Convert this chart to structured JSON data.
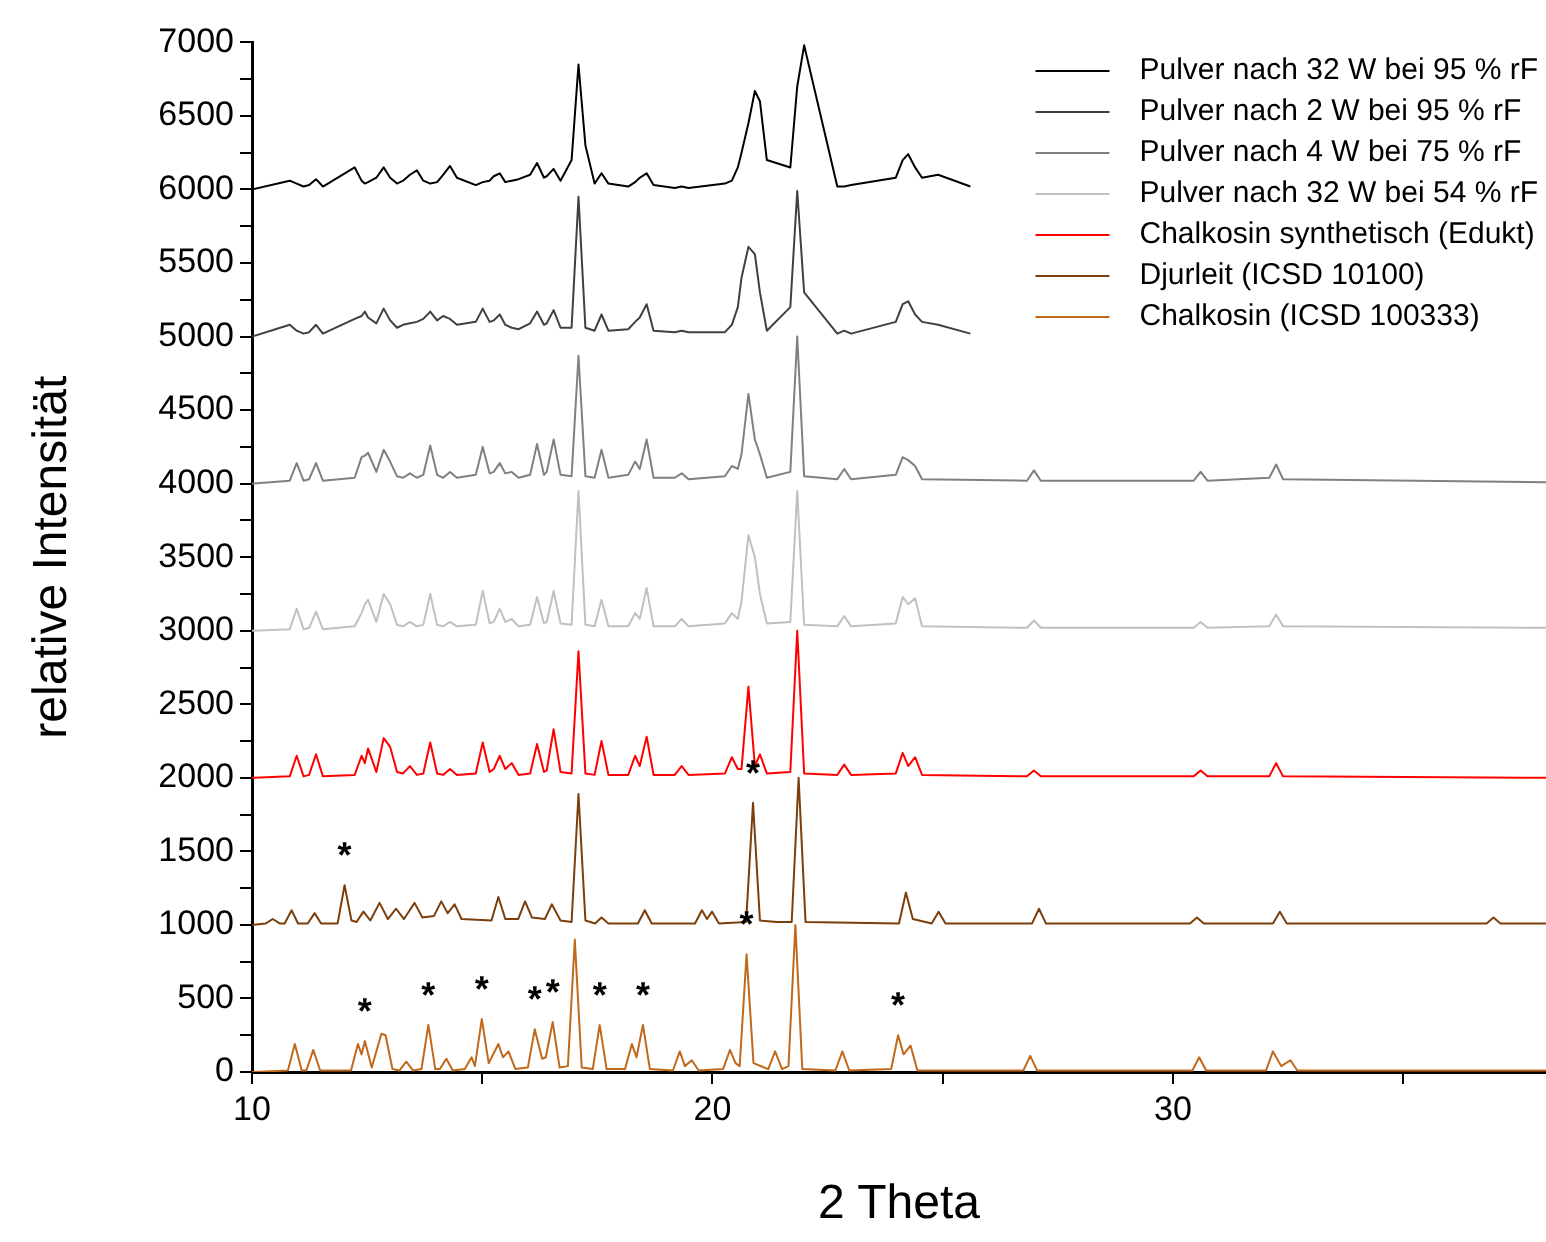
{
  "chart_data": {
    "type": "line",
    "xlabel": "2 Theta",
    "ylabel": "relative Intensität",
    "xlim": [
      10,
      38.1
    ],
    "ylim": [
      0,
      7000
    ],
    "xticks": [
      10,
      {
        "value": 15,
        "label": null
      },
      20,
      {
        "value": 25,
        "label": null
      },
      30,
      {
        "value": 35,
        "label": null
      }
    ],
    "yticks": [
      0,
      {
        "value": 250,
        "label": null
      },
      500,
      {
        "value": 750,
        "label": null
      },
      1000,
      {
        "value": 1250,
        "label": null
      },
      1500,
      {
        "value": 1750,
        "label": null
      },
      2000,
      {
        "value": 2250,
        "label": null
      },
      2500,
      {
        "value": 2750,
        "label": null
      },
      3000,
      {
        "value": 3250,
        "label": null
      },
      3500,
      {
        "value": 3750,
        "label": null
      },
      4000,
      {
        "value": 4250,
        "label": null
      },
      4500,
      {
        "value": 4750,
        "label": null
      },
      5000,
      {
        "value": 5250,
        "label": null
      },
      5500,
      {
        "value": 5750,
        "label": null
      },
      6000,
      {
        "value": 6250,
        "label": null
      },
      6500,
      {
        "value": 6750,
        "label": null
      },
      7000
    ],
    "legend": "top right",
    "series": [
      {
        "name": "Pulver nach 32 W bei 95 % rF",
        "color": "#000000",
        "x": [
          10,
          10.82,
          10.97,
          11.12,
          11.24,
          11.39,
          11.54,
          12.23,
          12.38,
          12.45,
          12.52,
          12.7,
          12.86,
          13.0,
          13.15,
          13.28,
          13.43,
          13.58,
          13.72,
          13.87,
          14.02,
          14.15,
          14.3,
          14.45,
          14.86,
          15.01,
          15.16,
          15.25,
          15.38,
          15.5,
          15.64,
          15.79,
          16.04,
          16.19,
          16.34,
          16.4,
          16.55,
          16.7,
          16.94,
          17.09,
          17.24,
          17.44,
          17.59,
          17.74,
          18.17,
          18.32,
          18.42,
          18.57,
          18.72,
          19.18,
          19.33,
          19.48,
          20.27,
          20.42,
          20.55,
          20.63,
          20.78,
          20.92,
          21.03,
          21.18,
          21.69,
          21.84,
          21.99,
          22.71,
          22.86,
          23.01,
          23.98,
          24.13,
          24.25,
          24.4,
          24.55,
          24.9,
          25.6
        ],
        "values": [
          6000,
          6060,
          6040,
          6020,
          6030,
          6070,
          6020,
          6150,
          6060,
          6040,
          6050,
          6080,
          6150,
          6080,
          6040,
          6060,
          6100,
          6130,
          6060,
          6040,
          6050,
          6100,
          6160,
          6080,
          6030,
          6050,
          6060,
          6090,
          6110,
          6050,
          6060,
          6070,
          6100,
          6180,
          6080,
          6090,
          6140,
          6060,
          6200,
          6850,
          6300,
          6040,
          6110,
          6040,
          6020,
          6050,
          6080,
          6110,
          6030,
          6010,
          6020,
          6010,
          6040,
          6060,
          6150,
          6250,
          6450,
          6670,
          6600,
          6200,
          6150,
          6700,
          6980,
          6020,
          6020,
          6030,
          6080,
          6200,
          6240,
          6150,
          6080,
          6100,
          6020
        ]
      },
      {
        "name": "Pulver nach 2 W bei 95 % rF",
        "color": "#404040",
        "x": [
          10,
          10.82,
          10.97,
          11.12,
          11.24,
          11.39,
          11.54,
          12.23,
          12.38,
          12.45,
          12.52,
          12.7,
          12.86,
          13.0,
          13.15,
          13.28,
          13.43,
          13.58,
          13.72,
          13.87,
          14.02,
          14.15,
          14.3,
          14.45,
          14.86,
          15.01,
          15.16,
          15.25,
          15.38,
          15.5,
          15.64,
          15.79,
          16.04,
          16.19,
          16.34,
          16.4,
          16.55,
          16.7,
          16.94,
          17.09,
          17.24,
          17.44,
          17.59,
          17.74,
          18.17,
          18.32,
          18.42,
          18.57,
          18.72,
          19.18,
          19.33,
          19.48,
          20.27,
          20.42,
          20.55,
          20.63,
          20.78,
          20.92,
          21.03,
          21.18,
          21.69,
          21.84,
          21.99,
          22.71,
          22.86,
          23.01,
          23.98,
          24.13,
          24.25,
          24.4,
          24.55,
          24.9,
          25.6
        ],
        "values": [
          5000,
          5080,
          5040,
          5020,
          5030,
          5080,
          5020,
          5120,
          5140,
          5170,
          5130,
          5090,
          5190,
          5110,
          5060,
          5080,
          5090,
          5100,
          5120,
          5170,
          5110,
          5140,
          5120,
          5080,
          5100,
          5190,
          5100,
          5110,
          5150,
          5080,
          5060,
          5050,
          5090,
          5170,
          5080,
          5090,
          5180,
          5060,
          5060,
          5950,
          5060,
          5040,
          5150,
          5040,
          5050,
          5100,
          5130,
          5220,
          5040,
          5030,
          5040,
          5030,
          5030,
          5080,
          5200,
          5400,
          5610,
          5560,
          5300,
          5040,
          5200,
          5990,
          5300,
          5020,
          5040,
          5020,
          5100,
          5220,
          5240,
          5150,
          5100,
          5080,
          5020
        ]
      },
      {
        "name": "Pulver nach 4 W bei 75 % rF",
        "color": "#808080",
        "x": [
          10,
          10.82,
          10.97,
          11.12,
          11.24,
          11.39,
          11.54,
          12.23,
          12.38,
          12.45,
          12.52,
          12.7,
          12.86,
          13.0,
          13.15,
          13.28,
          13.43,
          13.58,
          13.72,
          13.87,
          14.02,
          14.15,
          14.3,
          14.45,
          14.86,
          15.01,
          15.16,
          15.25,
          15.38,
          15.5,
          15.64,
          15.79,
          16.04,
          16.19,
          16.34,
          16.4,
          16.55,
          16.7,
          16.94,
          17.09,
          17.24,
          17.44,
          17.59,
          17.74,
          18.17,
          18.32,
          18.42,
          18.57,
          18.72,
          19.18,
          19.33,
          19.48,
          20.27,
          20.42,
          20.55,
          20.63,
          20.78,
          20.92,
          21.03,
          21.18,
          21.69,
          21.84,
          21.99,
          22.71,
          22.86,
          23.01,
          23.98,
          24.13,
          24.25,
          24.4,
          24.55,
          26.83,
          26.98,
          27.13,
          30.45,
          30.6,
          30.75,
          32.09,
          32.24,
          32.39,
          38.1
        ],
        "values": [
          4000,
          4020,
          4140,
          4020,
          4030,
          4140,
          4020,
          4040,
          4180,
          4190,
          4210,
          4080,
          4230,
          4150,
          4050,
          4040,
          4070,
          4040,
          4060,
          4260,
          4060,
          4040,
          4080,
          4040,
          4060,
          4250,
          4070,
          4080,
          4140,
          4070,
          4080,
          4040,
          4060,
          4270,
          4060,
          4080,
          4300,
          4060,
          4050,
          4870,
          4050,
          4040,
          4230,
          4040,
          4060,
          4150,
          4100,
          4300,
          4040,
          4040,
          4070,
          4030,
          4050,
          4120,
          4100,
          4200,
          4610,
          4300,
          4200,
          4040,
          4080,
          5000,
          4050,
          4030,
          4100,
          4030,
          4060,
          4180,
          4160,
          4120,
          4030,
          4020,
          4090,
          4020,
          4020,
          4080,
          4020,
          4040,
          4130,
          4030,
          4010
        ]
      },
      {
        "name": "Pulver nach 32 W bei 54 % rF",
        "color": "#c0c0c0",
        "x": [
          10,
          10.82,
          10.97,
          11.12,
          11.24,
          11.39,
          11.54,
          12.23,
          12.38,
          12.45,
          12.52,
          12.7,
          12.86,
          13.0,
          13.15,
          13.28,
          13.43,
          13.58,
          13.72,
          13.87,
          14.02,
          14.15,
          14.3,
          14.45,
          14.86,
          15.01,
          15.16,
          15.25,
          15.38,
          15.5,
          15.64,
          15.79,
          16.04,
          16.19,
          16.34,
          16.4,
          16.55,
          16.7,
          16.94,
          17.09,
          17.24,
          17.44,
          17.59,
          17.74,
          18.17,
          18.32,
          18.42,
          18.57,
          18.72,
          19.18,
          19.33,
          19.48,
          20.27,
          20.42,
          20.55,
          20.63,
          20.78,
          20.92,
          21.03,
          21.18,
          21.69,
          21.84,
          21.99,
          22.71,
          22.86,
          23.01,
          23.98,
          24.13,
          24.25,
          24.4,
          24.55,
          26.83,
          26.98,
          27.13,
          30.45,
          30.6,
          30.75,
          32.09,
          32.24,
          32.39,
          38.1
        ],
        "values": [
          3000,
          3010,
          3150,
          3010,
          3020,
          3130,
          3010,
          3030,
          3120,
          3180,
          3210,
          3060,
          3250,
          3180,
          3040,
          3030,
          3060,
          3030,
          3040,
          3250,
          3040,
          3030,
          3060,
          3030,
          3040,
          3270,
          3050,
          3060,
          3150,
          3060,
          3080,
          3030,
          3040,
          3230,
          3050,
          3060,
          3270,
          3050,
          3040,
          3950,
          3040,
          3030,
          3210,
          3030,
          3030,
          3120,
          3080,
          3290,
          3030,
          3030,
          3080,
          3030,
          3050,
          3120,
          3080,
          3200,
          3650,
          3500,
          3250,
          3050,
          3060,
          3950,
          3040,
          3030,
          3100,
          3030,
          3050,
          3230,
          3180,
          3220,
          3030,
          3020,
          3070,
          3020,
          3020,
          3060,
          3020,
          3030,
          3110,
          3030,
          3020
        ]
      },
      {
        "name": "Chalkosin synthetisch (Edukt)",
        "color": "#ff0000",
        "x": [
          10,
          10.82,
          10.97,
          11.12,
          11.24,
          11.39,
          11.54,
          12.23,
          12.38,
          12.45,
          12.52,
          12.7,
          12.86,
          13.0,
          13.15,
          13.28,
          13.43,
          13.58,
          13.72,
          13.87,
          14.02,
          14.15,
          14.3,
          14.45,
          14.86,
          15.01,
          15.16,
          15.25,
          15.38,
          15.5,
          15.64,
          15.79,
          16.04,
          16.19,
          16.34,
          16.4,
          16.55,
          16.7,
          16.94,
          17.09,
          17.24,
          17.44,
          17.59,
          17.74,
          18.17,
          18.32,
          18.42,
          18.57,
          18.72,
          19.18,
          19.33,
          19.48,
          20.27,
          20.42,
          20.55,
          20.63,
          20.78,
          20.92,
          21.03,
          21.18,
          21.69,
          21.84,
          21.99,
          22.71,
          22.86,
          23.01,
          23.98,
          24.13,
          24.25,
          24.4,
          24.55,
          26.83,
          26.98,
          27.13,
          30.45,
          30.6,
          30.75,
          32.09,
          32.24,
          32.39,
          38.1
        ],
        "values": [
          2000,
          2010,
          2150,
          2010,
          2020,
          2160,
          2010,
          2020,
          2150,
          2100,
          2200,
          2040,
          2270,
          2210,
          2040,
          2030,
          2080,
          2020,
          2030,
          2240,
          2030,
          2020,
          2060,
          2020,
          2030,
          2240,
          2040,
          2060,
          2150,
          2060,
          2100,
          2020,
          2030,
          2230,
          2040,
          2050,
          2330,
          2040,
          2030,
          2860,
          2030,
          2020,
          2250,
          2020,
          2020,
          2150,
          2080,
          2280,
          2020,
          2020,
          2080,
          2020,
          2030,
          2140,
          2060,
          2060,
          2620,
          2080,
          2160,
          2030,
          2040,
          3000,
          2030,
          2020,
          2090,
          2020,
          2030,
          2170,
          2080,
          2140,
          2020,
          2010,
          2050,
          2010,
          2010,
          2050,
          2010,
          2010,
          2100,
          2010,
          2000
        ]
      },
      {
        "name": "Djurleit (ICSD 10100)",
        "color": "#7a3f0c",
        "x": [
          10,
          10.3,
          10.45,
          10.6,
          10.71,
          10.86,
          11.0,
          11.21,
          11.36,
          11.5,
          11.86,
          12.01,
          12.16,
          12.27,
          12.42,
          12.57,
          12.77,
          12.95,
          13.13,
          13.3,
          13.53,
          13.7,
          13.95,
          14.11,
          14.25,
          14.4,
          14.55,
          15.2,
          15.35,
          15.5,
          15.78,
          15.93,
          16.08,
          16.36,
          16.51,
          16.7,
          16.94,
          17.09,
          17.24,
          17.45,
          17.59,
          17.74,
          18.38,
          18.53,
          18.68,
          19.62,
          19.77,
          19.88,
          19.99,
          20.14,
          20.73,
          20.88,
          21.03,
          21.4,
          21.72,
          21.87,
          22.02,
          24.05,
          24.2,
          24.35,
          24.76,
          24.91,
          25.06,
          26.94,
          27.09,
          27.24,
          30.37,
          30.52,
          30.67,
          32.17,
          32.32,
          32.47,
          36.81,
          36.96,
          37.11,
          38.1
        ],
        "values": [
          1000,
          1010,
          1040,
          1010,
          1010,
          1100,
          1010,
          1010,
          1080,
          1010,
          1010,
          1270,
          1030,
          1020,
          1090,
          1030,
          1150,
          1040,
          1110,
          1040,
          1150,
          1050,
          1060,
          1160,
          1080,
          1140,
          1040,
          1030,
          1190,
          1040,
          1040,
          1160,
          1050,
          1040,
          1140,
          1030,
          1020,
          1890,
          1030,
          1010,
          1050,
          1010,
          1010,
          1100,
          1010,
          1010,
          1100,
          1040,
          1090,
          1010,
          1020,
          1830,
          1030,
          1020,
          1020,
          2000,
          1020,
          1010,
          1220,
          1040,
          1010,
          1090,
          1010,
          1010,
          1110,
          1010,
          1010,
          1050,
          1010,
          1010,
          1090,
          1010,
          1010,
          1050,
          1010,
          1010
        ]
      },
      {
        "name": "Chalkosin (ICSD 100333)",
        "color": "#c0681c",
        "x": [
          10,
          10.78,
          10.93,
          11.08,
          11.18,
          11.33,
          11.48,
          12.15,
          12.3,
          12.38,
          12.45,
          12.6,
          12.81,
          12.9,
          13.05,
          13.2,
          13.35,
          13.5,
          13.68,
          13.83,
          13.98,
          14.08,
          14.22,
          14.36,
          14.62,
          14.77,
          14.84,
          14.99,
          15.14,
          15.35,
          15.45,
          15.57,
          15.72,
          15.99,
          16.14,
          16.3,
          16.38,
          16.53,
          16.68,
          16.86,
          17.01,
          17.16,
          17.4,
          17.55,
          17.7,
          18.1,
          18.25,
          18.35,
          18.49,
          18.64,
          19.14,
          19.29,
          19.4,
          19.55,
          19.7,
          20.23,
          20.38,
          20.5,
          20.59,
          20.74,
          20.89,
          21.21,
          21.36,
          21.51,
          21.65,
          21.8,
          21.95,
          22.67,
          22.82,
          22.97,
          23.88,
          24.03,
          24.15,
          24.3,
          24.45,
          26.75,
          26.9,
          27.05,
          30.42,
          30.57,
          30.72,
          32.02,
          32.17,
          32.35,
          32.55,
          32.7,
          38.1
        ],
        "values": [
          0,
          10,
          190,
          10,
          10,
          150,
          10,
          10,
          190,
          120,
          210,
          30,
          260,
          250,
          20,
          10,
          70,
          10,
          20,
          320,
          20,
          20,
          90,
          10,
          20,
          100,
          40,
          360,
          60,
          190,
          100,
          140,
          20,
          30,
          290,
          90,
          100,
          340,
          30,
          40,
          900,
          30,
          20,
          320,
          20,
          20,
          190,
          100,
          320,
          20,
          10,
          140,
          40,
          80,
          10,
          20,
          150,
          60,
          40,
          800,
          60,
          20,
          140,
          20,
          40,
          1000,
          20,
          10,
          140,
          10,
          20,
          250,
          120,
          180,
          10,
          10,
          110,
          10,
          10,
          100,
          10,
          10,
          140,
          40,
          80,
          10,
          10
        ]
      }
    ],
    "annotations": [
      {
        "text": "*",
        "x": 12.01,
        "y": 1270
      },
      {
        "text": "*",
        "x": 20.88,
        "y": 1830
      },
      {
        "text": "*",
        "x": 12.45,
        "y": 210
      },
      {
        "text": "*",
        "x": 13.83,
        "y": 320
      },
      {
        "text": "*",
        "x": 14.99,
        "y": 360
      },
      {
        "text": "*",
        "x": 16.14,
        "y": 290
      },
      {
        "text": "*",
        "x": 16.53,
        "y": 340
      },
      {
        "text": "*",
        "x": 17.55,
        "y": 320
      },
      {
        "text": "*",
        "x": 18.49,
        "y": 320
      },
      {
        "text": "*",
        "x": 20.74,
        "y": 800
      },
      {
        "text": "*",
        "x": 24.03,
        "y": 250
      }
    ]
  }
}
